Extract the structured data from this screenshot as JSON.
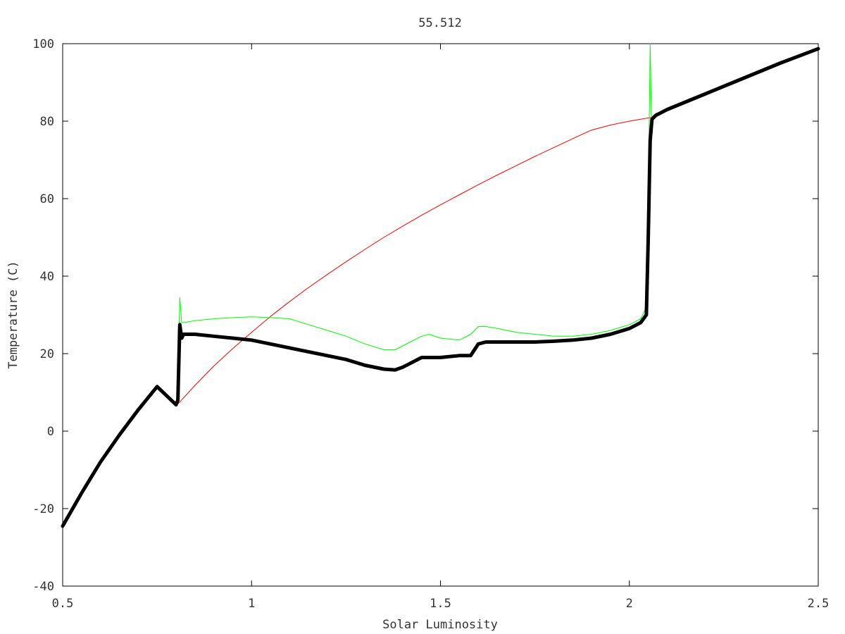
{
  "chart_data": {
    "type": "line",
    "title": "55.512",
    "xlabel": "Solar Luminosity",
    "ylabel": "Temperature (C)",
    "xlim": [
      0.5,
      2.5
    ],
    "ylim": [
      -40,
      100
    ],
    "xticks": [
      0.5,
      1,
      1.5,
      2,
      2.5
    ],
    "xtick_labels": [
      "0.5",
      "1",
      "1.5",
      "2",
      "2.5"
    ],
    "yticks": [
      -40,
      -20,
      0,
      20,
      40,
      60,
      80,
      100
    ],
    "ytick_labels": [
      "-40",
      "-20",
      "0",
      "20",
      "40",
      "60",
      "80",
      "100"
    ],
    "grid": false,
    "series": [
      {
        "color": "#ff0000",
        "style": "thin",
        "x": [
          0.8,
          0.85,
          0.9,
          0.95,
          1.0,
          1.05,
          1.1,
          1.15,
          1.2,
          1.25,
          1.3,
          1.35,
          1.4,
          1.45,
          1.5,
          1.55,
          1.6,
          1.65,
          1.7,
          1.75,
          1.8,
          1.85,
          1.9,
          1.95,
          2.0,
          2.06
        ],
        "y": [
          6.5,
          11.8,
          16.8,
          21.3,
          25.5,
          29.6,
          33.4,
          37.0,
          40.4,
          43.7,
          46.9,
          50.0,
          52.9,
          55.7,
          58.4,
          61.0,
          63.6,
          66.1,
          68.5,
          70.9,
          73.2,
          75.5,
          77.7,
          79.0,
          80.0,
          81.0
        ]
      },
      {
        "color": "#00ff00",
        "style": "thin",
        "x": [
          0.5,
          0.55,
          0.6,
          0.65,
          0.7,
          0.75,
          0.8,
          0.805,
          0.81,
          0.815,
          0.82,
          0.85,
          0.9,
          0.95,
          1.0,
          1.05,
          1.1,
          1.15,
          1.2,
          1.25,
          1.3,
          1.35,
          1.38,
          1.4,
          1.45,
          1.47,
          1.5,
          1.55,
          1.58,
          1.6,
          1.62,
          1.65,
          1.7,
          1.75,
          1.8,
          1.85,
          1.9,
          1.95,
          2.0,
          2.03,
          2.045,
          2.05,
          2.055,
          2.058,
          2.06,
          2.07,
          2.1,
          2.2,
          2.3,
          2.4,
          2.5
        ],
        "y": [
          -24.5,
          -16,
          -8,
          -1,
          5.5,
          11.5,
          6.8,
          8,
          34.5,
          28,
          28,
          28.5,
          29,
          29.3,
          29.5,
          29.3,
          29,
          27.5,
          26,
          24.5,
          22.5,
          21,
          21,
          22,
          24.5,
          25,
          24,
          23.5,
          25,
          27,
          27,
          26.5,
          25.5,
          25,
          24.5,
          24.5,
          25,
          26,
          27.5,
          29,
          32,
          60,
          100,
          82,
          81,
          82,
          83,
          87,
          91,
          95,
          98.7
        ]
      },
      {
        "color": "#000000",
        "style": "thick",
        "x": [
          0.5,
          0.55,
          0.6,
          0.65,
          0.7,
          0.75,
          0.8,
          0.805,
          0.81,
          0.815,
          0.82,
          0.85,
          0.9,
          0.95,
          1.0,
          1.05,
          1.1,
          1.15,
          1.2,
          1.25,
          1.3,
          1.35,
          1.38,
          1.4,
          1.45,
          1.5,
          1.55,
          1.58,
          1.6,
          1.62,
          1.65,
          1.7,
          1.75,
          1.8,
          1.85,
          1.9,
          1.95,
          2.0,
          2.03,
          2.045,
          2.05,
          2.055,
          2.06,
          2.07,
          2.1,
          2.2,
          2.3,
          2.4,
          2.5
        ],
        "y": [
          -24.5,
          -16,
          -8,
          -1,
          5.5,
          11.5,
          6.8,
          8,
          27.5,
          24,
          25,
          25,
          24.5,
          24,
          23.5,
          22.5,
          21.5,
          20.5,
          19.5,
          18.5,
          17,
          16,
          15.8,
          16.5,
          19,
          19,
          19.5,
          19.5,
          22.5,
          23,
          23,
          23,
          23,
          23.2,
          23.5,
          24,
          25,
          26.5,
          28,
          30,
          50,
          75,
          80.5,
          81.5,
          83,
          87,
          91,
          95,
          98.7
        ]
      }
    ]
  }
}
